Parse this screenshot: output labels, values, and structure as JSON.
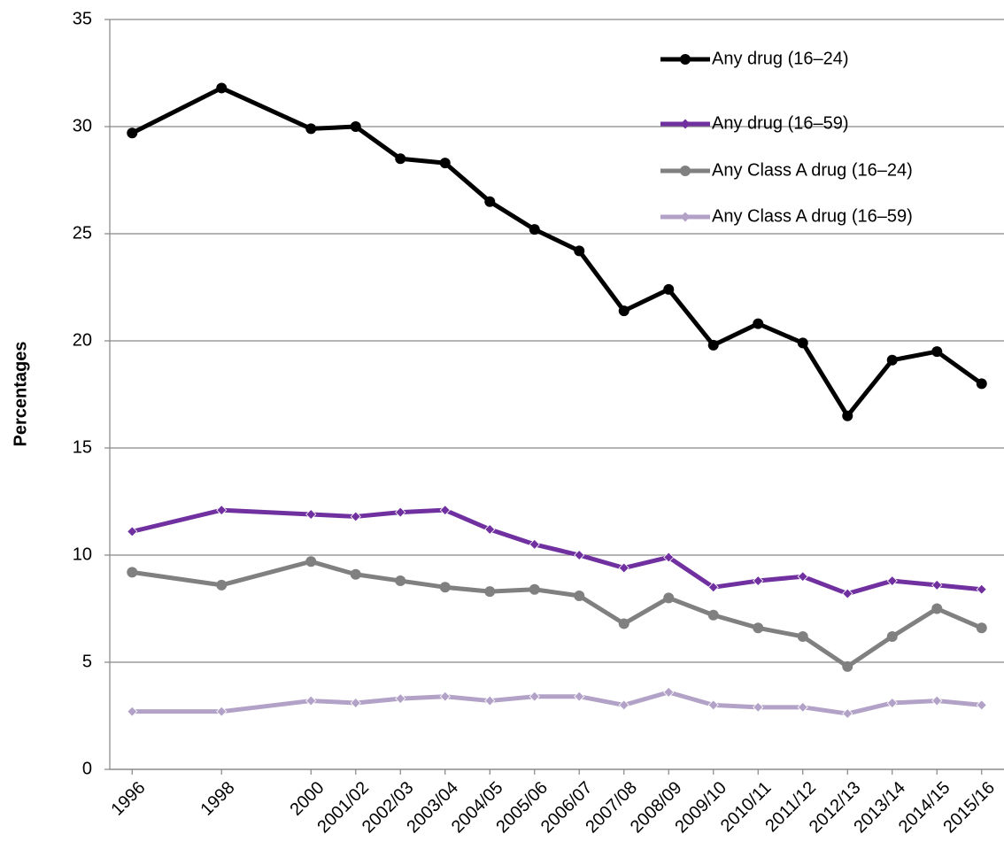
{
  "chart_data": {
    "type": "line",
    "y_label": "Percentages",
    "x": [
      1996,
      1998,
      2000,
      2001,
      2002,
      2003,
      2004,
      2005,
      2006,
      2007,
      2008,
      2009,
      2010,
      2011,
      2012,
      2013,
      2014,
      2015
    ],
    "xlim": [
      1995.5,
      2015.5
    ],
    "xticks": [
      1996,
      1998,
      2000,
      {
        "value": 2001,
        "label": "2001/02"
      },
      {
        "value": 2002,
        "label": "2002/03"
      },
      {
        "value": 2003,
        "label": "2003/04"
      },
      {
        "value": 2004,
        "label": "2004/05"
      },
      {
        "value": 2005,
        "label": "2005/06"
      },
      {
        "value": 2006,
        "label": "2006/07"
      },
      {
        "value": 2007,
        "label": "2007/08"
      },
      {
        "value": 2008,
        "label": "2008/09"
      },
      {
        "value": 2009,
        "label": "2009/10"
      },
      {
        "value": 2010,
        "label": "2010/11"
      },
      {
        "value": 2011,
        "label": "2011/12"
      },
      {
        "value": 2012,
        "label": "2012/13"
      },
      {
        "value": 2013,
        "label": "2013/14"
      },
      {
        "value": 2014,
        "label": "2014/15"
      },
      {
        "value": 2015,
        "label": "2015/16"
      }
    ],
    "ylim": [
      0,
      35
    ],
    "yticks": [
      0,
      5,
      10,
      15,
      20,
      25,
      30,
      35
    ],
    "grid": true,
    "legend": "top-right",
    "series": [
      {
        "name": "Any drug (16–24)",
        "color": "#000000",
        "marker": "circle",
        "values": [
          29.7,
          31.8,
          29.9,
          30.0,
          28.5,
          28.3,
          26.5,
          25.2,
          24.2,
          21.4,
          22.4,
          19.8,
          20.8,
          19.9,
          16.5,
          19.1,
          19.5,
          18.0
        ]
      },
      {
        "name": "Any drug (16–59)",
        "color": "#7030a0",
        "marker": "diamond",
        "values": [
          11.1,
          12.1,
          11.9,
          11.8,
          12.0,
          12.1,
          11.2,
          10.5,
          10.0,
          9.4,
          9.9,
          8.5,
          8.8,
          9.0,
          8.2,
          8.8,
          8.6,
          8.4
        ]
      },
      {
        "name": "Any Class A drug (16–24)",
        "color": "#808080",
        "marker": "circle",
        "values": [
          9.2,
          8.6,
          9.7,
          9.1,
          8.8,
          8.5,
          8.3,
          8.4,
          8.1,
          6.8,
          8.0,
          7.2,
          6.6,
          6.2,
          4.8,
          6.2,
          7.5,
          6.6
        ]
      },
      {
        "name": "Any Class A drug (16–59)",
        "color": "#b3a2c7",
        "marker": "diamond",
        "values": [
          2.7,
          2.7,
          3.2,
          3.1,
          3.3,
          3.4,
          3.2,
          3.4,
          3.4,
          3.0,
          3.6,
          3.0,
          2.9,
          2.9,
          2.6,
          3.1,
          3.2,
          3.0
        ]
      }
    ]
  }
}
